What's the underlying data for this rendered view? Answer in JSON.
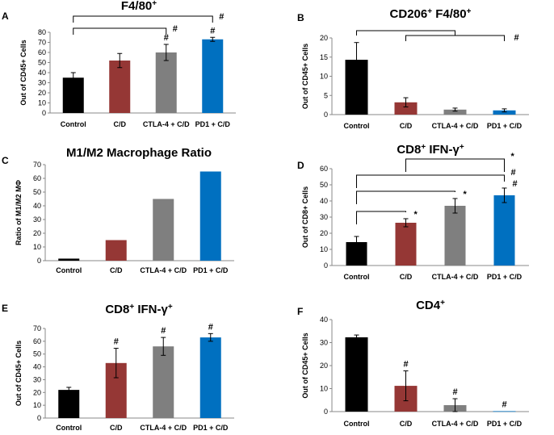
{
  "chart_data": [
    {
      "panel": "A",
      "type": "bar",
      "title": "F4/80",
      "title_sup": "+",
      "ylabel": "Out of CD45+ Cells",
      "ylim": [
        0,
        80
      ],
      "yticks": [
        0,
        10,
        20,
        30,
        40,
        50,
        60,
        70,
        80
      ],
      "categories": [
        "Control",
        "C/D",
        "CTLA-4 + C/D",
        "PD1 + C/D"
      ],
      "values": [
        35,
        52,
        60,
        73
      ],
      "errors": [
        5,
        7,
        8,
        2
      ],
      "colors": [
        "#000000",
        "#953735",
        "#7f7f7f",
        "#0070c0"
      ],
      "annotations": [
        "",
        "",
        "#",
        "#"
      ],
      "brackets": [
        {
          "from": 0,
          "to": 3,
          "label": "#"
        },
        {
          "from": 0,
          "to": 2,
          "label": "#"
        }
      ]
    },
    {
      "panel": "B",
      "type": "bar",
      "title": "CD206",
      "title_sup": "+",
      "title_rest": " F4/80",
      "title_sup2": "+",
      "ylabel": "Out of CD45+ Cells",
      "ylim": [
        0,
        20
      ],
      "yticks": [
        0,
        5,
        10,
        15,
        20
      ],
      "categories": [
        "Control",
        "C/D",
        "CTLA-4 + C/D",
        "PD1 + C/D"
      ],
      "values": [
        14.3,
        3.2,
        1.3,
        1.1
      ],
      "errors": [
        4.5,
        1.2,
        0.4,
        0.4
      ],
      "colors": [
        "#000000",
        "#953735",
        "#7f7f7f",
        "#0070c0"
      ],
      "annotations": [
        "",
        "",
        "",
        ""
      ],
      "brackets": [
        {
          "from": 0,
          "to": 3,
          "group_to": [
            1,
            3
          ],
          "label": "#"
        }
      ]
    },
    {
      "panel": "C",
      "type": "bar",
      "title": "M1/M2 Macrophage Ratio",
      "ylabel": "Ratio of M1/M2 MΦ",
      "ylim": [
        0,
        70
      ],
      "yticks": [
        0,
        10,
        20,
        30,
        40,
        50,
        60,
        70
      ],
      "categories": [
        "Control",
        "C/D",
        "CTLA-4 + C/D",
        "PD1 + C/D"
      ],
      "values": [
        1.5,
        15,
        45,
        65
      ],
      "errors": [
        0,
        0,
        0,
        0
      ],
      "colors": [
        "#000000",
        "#953735",
        "#7f7f7f",
        "#0070c0"
      ],
      "annotations": [
        "",
        "",
        "",
        ""
      ],
      "brackets": []
    },
    {
      "panel": "D",
      "type": "bar",
      "title": "CD8",
      "title_sup": "+",
      "title_rest": " IFN-γ",
      "title_sup2": "+",
      "ylabel": "Out of CD8+ Cells",
      "ylim": [
        0,
        60
      ],
      "yticks": [
        0,
        10,
        20,
        30,
        40,
        50,
        60
      ],
      "categories": [
        "Control",
        "C/D",
        "CTLA-4 + C/D",
        "PD1 + C/D"
      ],
      "values": [
        14.5,
        26.5,
        37,
        43.5
      ],
      "errors": [
        3.5,
        2.5,
        4.5,
        4.5
      ],
      "colors": [
        "#000000",
        "#953735",
        "#7f7f7f",
        "#0070c0"
      ],
      "annotations": [
        "",
        "*",
        "*",
        "#"
      ],
      "brackets": [
        {
          "from": 1,
          "to": 3,
          "label": "*"
        },
        {
          "from": 0,
          "to": 3,
          "label": "#"
        },
        {
          "from": 0,
          "to": 2,
          "label": ""
        },
        {
          "from": 0,
          "to": 1,
          "label": ""
        }
      ]
    },
    {
      "panel": "E",
      "type": "bar",
      "title": "CD8",
      "title_sup": "+",
      "title_rest": " IFN-γ",
      "title_sup2": "+",
      "ylabel": "Out of CD45+ Cells",
      "ylim": [
        0,
        70
      ],
      "yticks": [
        0,
        10,
        20,
        30,
        40,
        50,
        60,
        70
      ],
      "categories": [
        "Control",
        "C/D",
        "CTLA-4 + C/D",
        "PD1 + C/D"
      ],
      "values": [
        22,
        43,
        56,
        63
      ],
      "errors": [
        2,
        11.5,
        7,
        3
      ],
      "colors": [
        "#000000",
        "#953735",
        "#7f7f7f",
        "#0070c0"
      ],
      "annotations": [
        "",
        "#",
        "#",
        "#"
      ],
      "brackets": []
    },
    {
      "panel": "F",
      "type": "bar",
      "title": "CD4",
      "title_sup": "+",
      "ylabel": "Out of CD45+ Cells",
      "ylim": [
        0,
        40
      ],
      "yticks": [
        0,
        10,
        20,
        30,
        40
      ],
      "categories": [
        "Control",
        "C/D",
        "CTLA-4 + C/D",
        "PD1 + C/D"
      ],
      "values": [
        32.3,
        11.2,
        2.8,
        0.2
      ],
      "errors": [
        1,
        6.5,
        2.8,
        0
      ],
      "colors": [
        "#000000",
        "#953735",
        "#7f7f7f",
        "#0070c0"
      ],
      "annotations": [
        "",
        "#",
        "#",
        "#"
      ],
      "brackets": []
    }
  ]
}
